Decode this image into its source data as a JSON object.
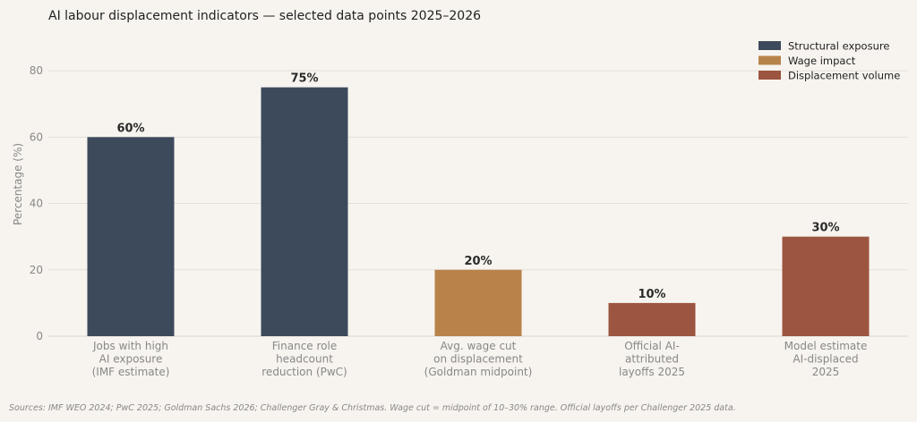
{
  "chart_data": {
    "type": "bar",
    "title": "AI labour displacement indicators — selected data points 2025–2026",
    "xlabel": "",
    "ylabel": "Percentage (%)",
    "ylim": [
      0,
      90
    ],
    "yticks": [
      0,
      20,
      40,
      60,
      80
    ],
    "grid": true,
    "legend_position": "top-right",
    "categories": [
      [
        "Jobs with high",
        "AI exposure",
        "(IMF estimate)"
      ],
      [
        "Finance role",
        "headcount",
        "reduction (PwC)"
      ],
      [
        "Avg. wage cut",
        "on displacement",
        "(Goldman midpoint)"
      ],
      [
        "Official AI-",
        "attributed",
        "layoffs 2025"
      ],
      [
        "Model estimate",
        "AI-displaced",
        "2025"
      ]
    ],
    "values": [
      60,
      75,
      20,
      10,
      30
    ],
    "value_labels": [
      "60%",
      "75%",
      "20%",
      "10%",
      "30%"
    ],
    "bar_groups": [
      0,
      0,
      1,
      2,
      2
    ],
    "legend": [
      {
        "name": "Structural exposure",
        "color": "#3d4a5c"
      },
      {
        "name": "Wage impact",
        "color": "#b8834a"
      },
      {
        "name": "Displacement volume",
        "color": "#9c5540"
      }
    ],
    "source_note": "Sources: IMF WEO 2024; PwC 2025; Goldman Sachs 2026; Challenger Gray & Christmas. Wage cut = midpoint of 10–30% range. Official layoffs per Challenger 2025 data."
  }
}
